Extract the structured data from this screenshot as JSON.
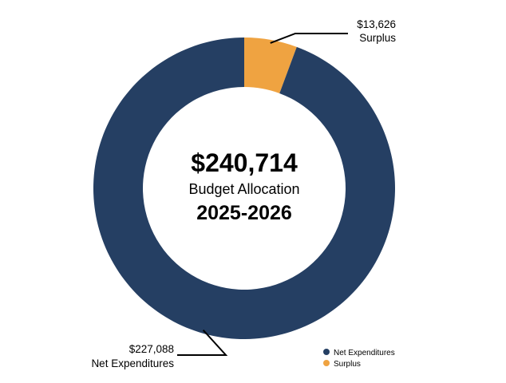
{
  "chart_data": {
    "type": "pie",
    "variant": "donut",
    "categories": [
      "Net Expenditures",
      "Surplus"
    ],
    "values": [
      227088,
      13626
    ],
    "value_labels": [
      "$227,088",
      "$13,626"
    ],
    "colors": [
      "#253f63",
      "#efa341"
    ],
    "legend": {
      "position": "bottom-right",
      "items": [
        "Net Expenditures",
        "Surplus"
      ]
    },
    "center": {
      "total": "$240,714",
      "caption": "Budget Allocation",
      "period": "2025-2026"
    },
    "title": ""
  }
}
